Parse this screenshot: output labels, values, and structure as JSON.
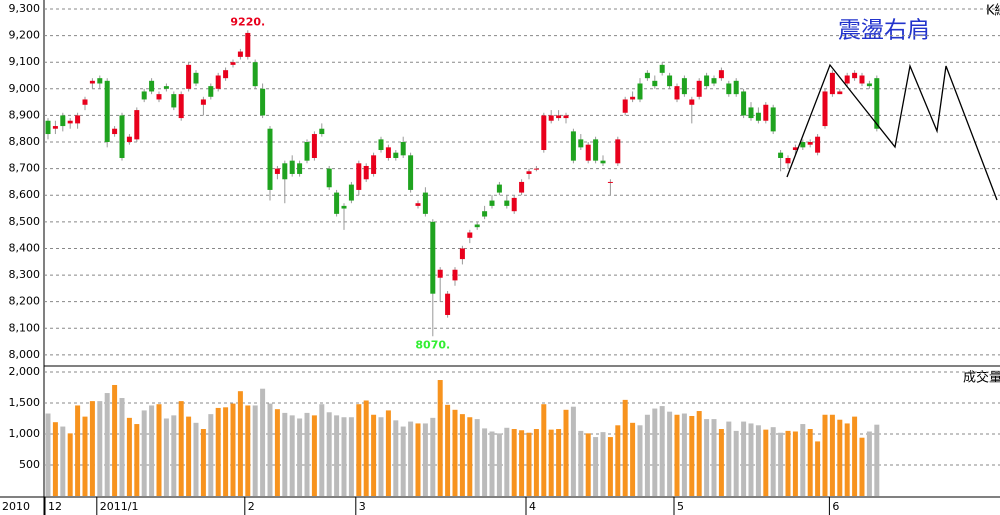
{
  "chart_data": {
    "type": "candlestick",
    "title": "震盪右肩",
    "price_label": "K線",
    "volume_label": "成交量",
    "year_label": "2010",
    "up_color": "#e8001c",
    "down_color": "#1fa31f",
    "volume_up_color": "#f7931e",
    "volume_down_color": "#bbbbbb",
    "grid": true,
    "ylim": [
      7962,
      9330
    ],
    "yticks": [
      {
        "value": 8000,
        "label": "8,000"
      },
      {
        "value": 8100,
        "label": "8,100"
      },
      {
        "value": 8200,
        "label": "8,200"
      },
      {
        "value": 8300,
        "label": "8,300"
      },
      {
        "value": 8400,
        "label": "8,400"
      },
      {
        "value": 8500,
        "label": "8,500"
      },
      {
        "value": 8600,
        "label": "8,600"
      },
      {
        "value": 8700,
        "label": "8,700"
      },
      {
        "value": 8800,
        "label": "8,800"
      },
      {
        "value": 8900,
        "label": "8,900"
      },
      {
        "value": 9000,
        "label": "9,000"
      },
      {
        "value": 9100,
        "label": "9,100"
      },
      {
        "value": 9200,
        "label": "9,200"
      },
      {
        "value": 9300,
        "label": "9,300"
      }
    ],
    "volume_ylim": [
      0,
      2080
    ],
    "volume_yticks": [
      500,
      {
        "value": 1000,
        "label": "1,000"
      },
      {
        "value": 1500,
        "label": "1,500"
      },
      {
        "value": 2000,
        "label": "2,000"
      }
    ],
    "annotations": [
      {
        "label": "9220.",
        "value": 9220
      },
      {
        "label": "8070.",
        "value": 8070
      }
    ],
    "categories": [
      "12",
      null,
      null,
      null,
      null,
      null,
      null,
      "2011/1",
      null,
      null,
      null,
      null,
      null,
      null,
      null,
      null,
      null,
      null,
      null,
      null,
      null,
      null,
      null,
      null,
      null,
      null,
      null,
      "2",
      null,
      null,
      null,
      null,
      null,
      null,
      null,
      null,
      null,
      null,
      null,
      null,
      null,
      null,
      "3",
      null,
      null,
      null,
      null,
      null,
      null,
      null,
      null,
      null,
      null,
      null,
      null,
      null,
      null,
      null,
      null,
      null,
      null,
      null,
      null,
      null,
      null,
      "4",
      null,
      null,
      null,
      null,
      null,
      null,
      null,
      null,
      null,
      null,
      null,
      null,
      null,
      null,
      null,
      null,
      null,
      null,
      null,
      "5",
      null,
      null,
      null,
      null,
      null,
      null,
      null,
      null,
      null,
      null,
      null,
      null,
      null,
      null,
      null,
      null,
      null,
      null,
      null,
      null,
      "6",
      null,
      null,
      null,
      null,
      null,
      null
    ],
    "candles": [
      [
        8880,
        8890,
        8810,
        8830
      ],
      [
        8850,
        8880,
        8830,
        8860
      ],
      [
        8900,
        8910,
        8840,
        8860
      ],
      [
        8870,
        8890,
        8850,
        8880
      ],
      [
        8870,
        8910,
        8850,
        8900
      ],
      [
        8940,
        8970,
        8920,
        8960
      ],
      [
        9020,
        9040,
        9000,
        9030
      ],
      [
        9040,
        9050,
        9000,
        9020
      ],
      [
        9030,
        9040,
        8780,
        8800
      ],
      [
        8830,
        8860,
        8820,
        8850
      ],
      [
        8900,
        8910,
        8730,
        8740
      ],
      [
        8800,
        8830,
        8790,
        8820
      ],
      [
        8810,
        8930,
        8800,
        8920
      ],
      [
        8990,
        9000,
        8950,
        8960
      ],
      [
        9030,
        9040,
        8980,
        8990
      ],
      [
        8960,
        8990,
        8950,
        8980
      ],
      [
        9010,
        9020,
        8990,
        9000
      ],
      [
        8980,
        8990,
        8920,
        8930
      ],
      [
        8890,
        8990,
        8880,
        8980
      ],
      [
        9000,
        9100,
        8990,
        9090
      ],
      [
        9060,
        9070,
        9010,
        9020
      ],
      [
        8940,
        8970,
        8900,
        8960
      ],
      [
        9010,
        9020,
        8960,
        8970
      ],
      [
        9000,
        9060,
        8990,
        9050
      ],
      [
        9040,
        9080,
        9030,
        9070
      ],
      [
        9090,
        9110,
        9080,
        9100
      ],
      [
        9120,
        9150,
        9110,
        9140
      ],
      [
        9120,
        9220,
        9110,
        9210
      ],
      [
        9100,
        9110,
        9000,
        9010
      ],
      [
        9000,
        9020,
        8890,
        8900
      ],
      [
        8850,
        8860,
        8580,
        8620
      ],
      [
        8680,
        8710,
        8660,
        8700
      ],
      [
        8720,
        8730,
        8570,
        8660
      ],
      [
        8730,
        8750,
        8670,
        8680
      ],
      [
        8720,
        8730,
        8670,
        8680
      ],
      [
        8800,
        8810,
        8720,
        8730
      ],
      [
        8740,
        8840,
        8730,
        8830
      ],
      [
        8850,
        8870,
        8820,
        8830
      ],
      [
        8700,
        8710,
        8620,
        8630
      ],
      [
        8610,
        8620,
        8520,
        8530
      ],
      [
        8560,
        8570,
        8470,
        8550
      ],
      [
        8640,
        8650,
        8570,
        8580
      ],
      [
        8620,
        8730,
        8600,
        8720
      ],
      [
        8660,
        8720,
        8650,
        8710
      ],
      [
        8680,
        8760,
        8670,
        8750
      ],
      [
        8810,
        8820,
        8760,
        8770
      ],
      [
        8740,
        8790,
        8730,
        8780
      ],
      [
        8760,
        8770,
        8730,
        8740
      ],
      [
        8800,
        8820,
        8740,
        8750
      ],
      [
        8750,
        8760,
        8610,
        8620
      ],
      [
        8560,
        8580,
        8550,
        8570
      ],
      [
        8610,
        8630,
        8520,
        8530
      ],
      [
        8500,
        8510,
        8070,
        8230
      ],
      [
        8290,
        8330,
        8200,
        8320
      ],
      [
        8150,
        8240,
        8140,
        8230
      ],
      [
        8280,
        8330,
        8260,
        8320
      ],
      [
        8360,
        8410,
        8340,
        8400
      ],
      [
        8440,
        8470,
        8420,
        8460
      ],
      [
        8490,
        8500,
        8470,
        8480
      ],
      [
        8540,
        8560,
        8510,
        8520
      ],
      [
        8580,
        8600,
        8550,
        8560
      ],
      [
        8640,
        8650,
        8600,
        8610
      ],
      [
        8580,
        8600,
        8550,
        8560
      ],
      [
        8540,
        8600,
        8530,
        8590
      ],
      [
        8610,
        8660,
        8600,
        8650
      ],
      [
        8680,
        8700,
        8660,
        8690
      ],
      [
        8700,
        8710,
        8690,
        8700
      ],
      [
        8770,
        8910,
        8760,
        8900
      ],
      [
        8880,
        8920,
        8870,
        8900
      ],
      [
        8890,
        8920,
        8880,
        8900
      ],
      [
        8890,
        8910,
        8870,
        8900
      ],
      [
        8840,
        8850,
        8720,
        8730
      ],
      [
        8810,
        8830,
        8770,
        8780
      ],
      [
        8730,
        8800,
        8720,
        8790
      ],
      [
        8810,
        8820,
        8720,
        8730
      ],
      [
        8730,
        8750,
        8710,
        8720
      ],
      [
        8650,
        8660,
        8600,
        8650
      ],
      [
        8720,
        8820,
        8710,
        8810
      ],
      [
        8910,
        8970,
        8900,
        8960
      ],
      [
        8960,
        8990,
        8950,
        8970
      ],
      [
        9020,
        9040,
        8950,
        8960
      ],
      [
        9060,
        9070,
        9030,
        9040
      ],
      [
        9030,
        9050,
        9000,
        9010
      ],
      [
        9090,
        9100,
        9050,
        9060
      ],
      [
        9050,
        9060,
        9000,
        9010
      ],
      [
        8960,
        9020,
        8950,
        9010
      ],
      [
        9040,
        9050,
        8970,
        8980
      ],
      [
        8940,
        8970,
        8870,
        8960
      ],
      [
        8970,
        9040,
        8960,
        9030
      ],
      [
        9050,
        9060,
        9000,
        9010
      ],
      [
        9040,
        9050,
        9010,
        9020
      ],
      [
        9040,
        9080,
        9030,
        9070
      ],
      [
        9020,
        9030,
        8970,
        8980
      ],
      [
        9030,
        9040,
        8970,
        8980
      ],
      [
        8990,
        9000,
        8890,
        8900
      ],
      [
        8930,
        8950,
        8880,
        8890
      ],
      [
        8910,
        8930,
        8870,
        8880
      ],
      [
        8880,
        8950,
        8870,
        8940
      ],
      [
        8930,
        8940,
        8830,
        8840
      ],
      [
        8760,
        8770,
        8690,
        8740
      ],
      [
        8720,
        8750,
        8700,
        8740
      ],
      [
        8770,
        8790,
        8750,
        8780
      ],
      [
        8800,
        8810,
        8770,
        8780
      ],
      [
        8790,
        8810,
        8780,
        8800
      ],
      [
        8760,
        8830,
        8750,
        8820
      ],
      [
        8860,
        9000,
        8850,
        8990
      ],
      [
        8980,
        9070,
        8970,
        9060
      ],
      [
        8980,
        9000,
        8980,
        8990
      ],
      [
        9020,
        9060,
        9010,
        9050
      ],
      [
        9040,
        9070,
        9030,
        9060
      ],
      [
        9020,
        9060,
        9010,
        9050
      ],
      [
        9020,
        9030,
        9000,
        9010
      ],
      [
        9040,
        9050,
        8840,
        8850
      ]
    ],
    "volume": [
      1330,
      1190,
      1120,
      1010,
      1460,
      1280,
      1530,
      1530,
      1660,
      1790,
      1580,
      1260,
      1160,
      1380,
      1460,
      1480,
      1250,
      1300,
      1530,
      1280,
      1180,
      1080,
      1320,
      1420,
      1430,
      1490,
      1690,
      1460,
      1460,
      1730,
      1490,
      1400,
      1340,
      1300,
      1250,
      1340,
      1300,
      1480,
      1350,
      1300,
      1270,
      1270,
      1480,
      1540,
      1310,
      1270,
      1380,
      1220,
      1120,
      1200,
      1170,
      1170,
      1260,
      1870,
      1470,
      1390,
      1320,
      1270,
      1240,
      1090,
      1040,
      1010,
      1100,
      1080,
      1060,
      1020,
      1080,
      1480,
      1070,
      1080,
      1390,
      1440,
      1050,
      1010,
      950,
      1030,
      950,
      1140,
      1550,
      1180,
      1140,
      1310,
      1410,
      1450,
      1360,
      1310,
      1330,
      1290,
      1370,
      1240,
      1240,
      1080,
      1200,
      1050,
      1200,
      1170,
      1140,
      1070,
      1110,
      1020,
      1050,
      1040,
      1160,
      1080,
      880,
      1310,
      1310,
      1230,
      1170,
      1280,
      940,
      1040,
      1150
    ]
  }
}
